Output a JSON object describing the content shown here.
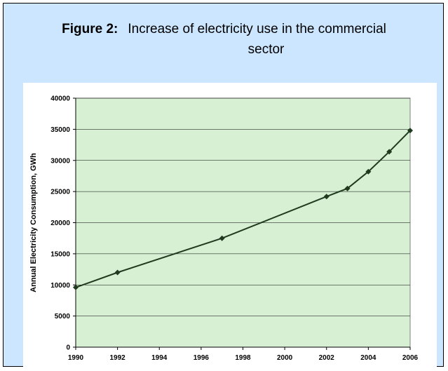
{
  "figure": {
    "label": "Figure 2:",
    "title_line1": "Increase of electricity use in the commercial",
    "title_line2": "sector"
  },
  "colors": {
    "panel_bg": "#cce6ff",
    "plot_bg": "#d7f0d3",
    "line": "#1f3a1f",
    "grid": "#000000"
  },
  "chart_data": {
    "type": "line",
    "title": "",
    "xlabel": "",
    "ylabel": "Annual Electricity Consumption, GWh",
    "xlim": [
      1990,
      2006
    ],
    "ylim": [
      0,
      40000
    ],
    "x_ticks": [
      1990,
      1992,
      1994,
      1996,
      1998,
      2000,
      2002,
      2004,
      2006
    ],
    "y_ticks": [
      0,
      5000,
      10000,
      15000,
      20000,
      25000,
      30000,
      35000,
      40000
    ],
    "grid": true,
    "legend": "none",
    "series": [
      {
        "x": [
          1990,
          1992,
          1997,
          2002,
          2003,
          2004,
          2005,
          2006
        ],
        "y": [
          9600,
          12000,
          17500,
          24200,
          25500,
          28200,
          31400,
          34800
        ]
      }
    ]
  }
}
